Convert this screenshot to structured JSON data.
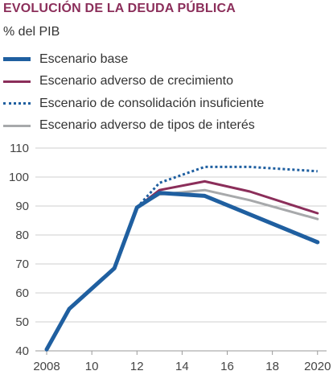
{
  "chart_data": {
    "type": "line",
    "title": "EVOLUCIÓN DE LA DEUDA PÚBLICA",
    "ylabel": "% del PIB",
    "xlabel": "",
    "x_tick_labels": [
      "2008",
      "10",
      "12",
      "14",
      "16",
      "18",
      "2020"
    ],
    "x_ticks": [
      2008,
      2010,
      2012,
      2014,
      2016,
      2018,
      2020
    ],
    "xlim": [
      2007.5,
      2020.4
    ],
    "ylim": [
      40,
      110
    ],
    "y_ticks": [
      40,
      50,
      60,
      70,
      80,
      90,
      100,
      110
    ],
    "grid": "horizontal",
    "legend_position": "top",
    "series": [
      {
        "name": "Escenario base",
        "color": "#1f5fa0",
        "style": "solid-thick",
        "x": [
          2008,
          2009,
          2011,
          2012,
          2013,
          2015,
          2020
        ],
        "values": [
          40.5,
          54.5,
          68.5,
          89.5,
          94.5,
          93.5,
          77.5
        ]
      },
      {
        "name": "Escenario adverso de crecimiento",
        "color": "#8b2e5a",
        "style": "solid",
        "x": [
          2012,
          2013,
          2015,
          2017,
          2020
        ],
        "values": [
          89.5,
          95.5,
          98.5,
          95.0,
          87.5
        ]
      },
      {
        "name": "Escenario de consolidación insuficiente",
        "color": "#1f5fa0",
        "style": "dotted",
        "x": [
          2012,
          2013,
          2015,
          2017,
          2020
        ],
        "values": [
          89.5,
          98.0,
          103.5,
          103.5,
          102.0
        ]
      },
      {
        "name": "Escenario adverso de tipos de interés",
        "color": "#a7a9ab",
        "style": "solid",
        "x": [
          2012,
          2013,
          2015,
          2017,
          2020
        ],
        "values": [
          89.5,
          94.0,
          95.5,
          92.0,
          85.5
        ]
      }
    ]
  }
}
